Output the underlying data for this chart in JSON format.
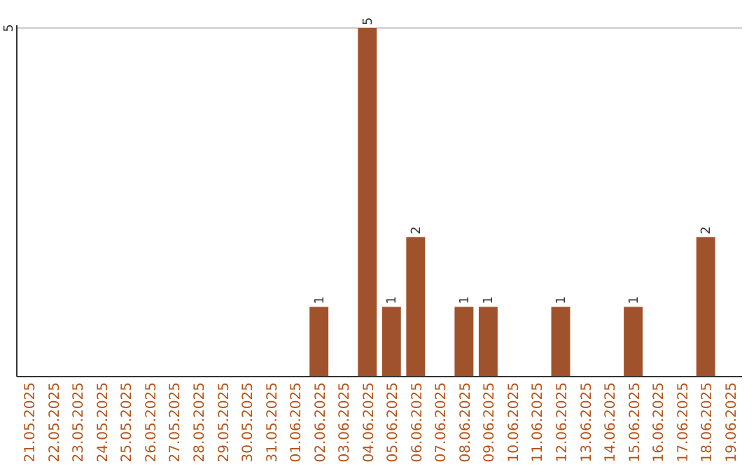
{
  "chart_data": {
    "type": "bar",
    "categories": [
      "21.05.2025",
      "22.05.2025",
      "23.05.2025",
      "24.05.2025",
      "25.05.2025",
      "26.05.2025",
      "27.05.2025",
      "28.05.2025",
      "29.05.2025",
      "30.05.2025",
      "31.05.2025",
      "01.06.2025",
      "02.06.2025",
      "03.06.2025",
      "04.06.2025",
      "05.06.2025",
      "06.06.2025",
      "07.06.2025",
      "08.06.2025",
      "09.06.2025",
      "10.06.2025",
      "11.06.2025",
      "12.06.2025",
      "13.06.2025",
      "14.06.2025",
      "15.06.2025",
      "16.06.2025",
      "17.06.2025",
      "18.06.2025",
      "19.06.2025"
    ],
    "values": [
      null,
      null,
      null,
      null,
      null,
      null,
      null,
      null,
      null,
      null,
      null,
      null,
      1,
      null,
      5,
      1,
      2,
      null,
      1,
      1,
      null,
      null,
      1,
      null,
      null,
      1,
      null,
      null,
      2,
      null
    ],
    "value_labels": [
      null,
      null,
      null,
      null,
      null,
      null,
      null,
      null,
      null,
      null,
      null,
      null,
      "1",
      null,
      "5",
      "1",
      "2",
      null,
      "1",
      "1",
      null,
      null,
      "1",
      null,
      null,
      "1",
      null,
      null,
      "2",
      null
    ],
    "color": "#a0522d",
    "ref_lines": [
      {
        "axis": "y",
        "value": 5,
        "label": "5",
        "color": "#cccccc"
      }
    ]
  }
}
